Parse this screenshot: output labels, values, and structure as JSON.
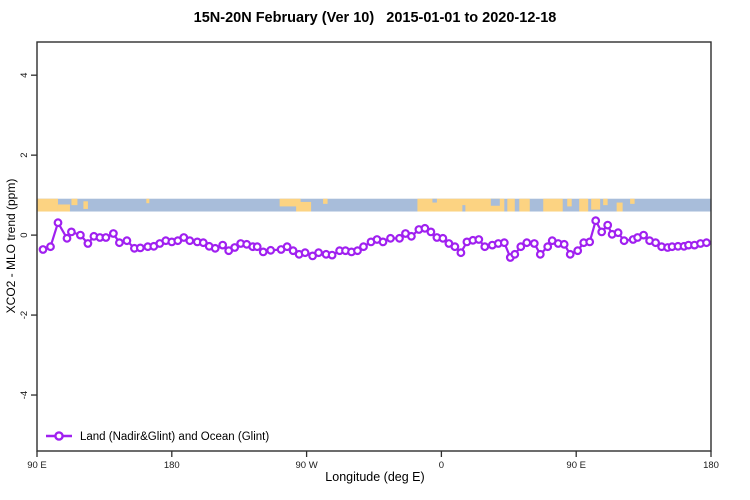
{
  "chart": {
    "title": "15N-20N February (Ver 10)   2015-01-01 to 2020-12-18",
    "xlabel": "Longitude (deg E)",
    "ylabel": "XCO2 - MLO trend (ppm)",
    "legend_label": "Land (Nadir&Glint) and Ocean (Glint)"
  },
  "chart_data": {
    "type": "line",
    "title": "15N-20N February (Ver 10)   2015-01-01 to 2020-12-18",
    "xlabel": "Longitude (deg E)",
    "ylabel": "XCO2 - MLO trend (ppm)",
    "grid": false,
    "legend_position": "bottom-left",
    "xlim": [
      90,
      540
    ],
    "ylim": [
      -5.4,
      4.83
    ],
    "x_ticks": [
      {
        "lon": 90,
        "label": "90 E"
      },
      {
        "lon": 180,
        "label": "180"
      },
      {
        "lon": 270,
        "label": "90 W"
      },
      {
        "lon": 360,
        "label": "0"
      },
      {
        "lon": 450,
        "label": "90 E"
      },
      {
        "lon": 540,
        "label": "180"
      }
    ],
    "y_ticks": [
      -4,
      -2,
      0,
      2,
      4
    ],
    "series": [
      {
        "name": "Land (Nadir&Glint) and Ocean (Glint)",
        "color": "#A020F0",
        "marker": "open-circle",
        "points": [
          [
            94,
            -0.36
          ],
          [
            99,
            -0.29
          ],
          [
            104,
            0.31
          ],
          [
            110,
            -0.08
          ],
          [
            113,
            0.08
          ],
          [
            119,
            0.0
          ],
          [
            124,
            -0.21
          ],
          [
            128,
            -0.03
          ],
          [
            132,
            -0.06
          ],
          [
            136,
            -0.06
          ],
          [
            141,
            0.04
          ],
          [
            145,
            -0.19
          ],
          [
            150,
            -0.14
          ],
          [
            155,
            -0.33
          ],
          [
            159,
            -0.32
          ],
          [
            164,
            -0.29
          ],
          [
            168,
            -0.28
          ],
          [
            172,
            -0.21
          ],
          [
            176,
            -0.14
          ],
          [
            180,
            -0.17
          ],
          [
            184,
            -0.14
          ],
          [
            188,
            -0.06
          ],
          [
            192,
            -0.14
          ],
          [
            197,
            -0.17
          ],
          [
            201,
            -0.19
          ],
          [
            205,
            -0.28
          ],
          [
            209,
            -0.33
          ],
          [
            214,
            -0.25
          ],
          [
            218,
            -0.39
          ],
          [
            222,
            -0.31
          ],
          [
            226,
            -0.21
          ],
          [
            230,
            -0.23
          ],
          [
            234,
            -0.29
          ],
          [
            237,
            -0.29
          ],
          [
            241,
            -0.42
          ],
          [
            246,
            -0.38
          ],
          [
            253,
            -0.36
          ],
          [
            257,
            -0.29
          ],
          [
            261,
            -0.39
          ],
          [
            265,
            -0.48
          ],
          [
            269,
            -0.44
          ],
          [
            274,
            -0.52
          ],
          [
            278,
            -0.44
          ],
          [
            283,
            -0.48
          ],
          [
            287,
            -0.5
          ],
          [
            292,
            -0.39
          ],
          [
            296,
            -0.39
          ],
          [
            300,
            -0.42
          ],
          [
            304,
            -0.39
          ],
          [
            308,
            -0.29
          ],
          [
            313,
            -0.17
          ],
          [
            317,
            -0.11
          ],
          [
            321,
            -0.17
          ],
          [
            326,
            -0.08
          ],
          [
            332,
            -0.08
          ],
          [
            336,
            0.04
          ],
          [
            340,
            -0.03
          ],
          [
            345,
            0.14
          ],
          [
            349,
            0.17
          ],
          [
            353,
            0.08
          ],
          [
            357,
            -0.06
          ],
          [
            361,
            -0.08
          ],
          [
            365,
            -0.21
          ],
          [
            369,
            -0.29
          ],
          [
            373,
            -0.44
          ],
          [
            377,
            -0.17
          ],
          [
            381,
            -0.13
          ],
          [
            385,
            -0.11
          ],
          [
            389,
            -0.29
          ],
          [
            394,
            -0.25
          ],
          [
            398,
            -0.21
          ],
          [
            402,
            -0.19
          ],
          [
            406,
            -0.56
          ],
          [
            409,
            -0.48
          ],
          [
            413,
            -0.29
          ],
          [
            417,
            -0.19
          ],
          [
            422,
            -0.21
          ],
          [
            426,
            -0.48
          ],
          [
            431,
            -0.29
          ],
          [
            434,
            -0.14
          ],
          [
            438,
            -0.21
          ],
          [
            442,
            -0.23
          ],
          [
            446,
            -0.48
          ],
          [
            451,
            -0.39
          ],
          [
            455,
            -0.19
          ],
          [
            459,
            -0.17
          ],
          [
            463,
            0.36
          ],
          [
            467,
            0.08
          ],
          [
            471,
            0.25
          ],
          [
            474,
            0.02
          ],
          [
            478,
            0.06
          ],
          [
            482,
            -0.14
          ],
          [
            488,
            -0.11
          ],
          [
            491,
            -0.06
          ],
          [
            495,
            0.0
          ],
          [
            499,
            -0.14
          ],
          [
            503,
            -0.19
          ],
          [
            507,
            -0.29
          ],
          [
            511,
            -0.31
          ],
          [
            514,
            -0.29
          ],
          [
            518,
            -0.28
          ],
          [
            522,
            -0.28
          ],
          [
            525,
            -0.25
          ],
          [
            529,
            -0.25
          ],
          [
            533,
            -0.21
          ],
          [
            537,
            -0.19
          ]
        ]
      }
    ],
    "map_band": {
      "description": "land-ocean map strip",
      "value_top": 0.91,
      "value_bottom": 0.59,
      "ocean_color": "#a8bdda",
      "land_color": "#fcd382",
      "land_segments": [
        [
          90,
          104,
          0,
          1
        ],
        [
          104,
          112,
          0.45,
          0.55
        ],
        [
          113,
          117,
          0,
          0.5
        ],
        [
          121,
          124,
          0.2,
          0.6
        ],
        [
          163,
          165,
          0,
          0.35
        ],
        [
          252,
          266,
          0,
          0.6
        ],
        [
          263,
          273,
          0.25,
          0.75
        ],
        [
          281,
          284,
          0,
          0.4
        ],
        [
          344,
          402,
          0,
          1
        ],
        [
          404,
          409,
          0,
          1
        ],
        [
          412,
          419,
          0,
          1
        ],
        [
          428,
          441,
          0,
          1
        ],
        [
          444,
          447,
          0,
          0.6
        ],
        [
          452,
          458,
          0,
          1
        ],
        [
          460,
          466,
          0,
          0.85
        ],
        [
          468,
          471,
          0,
          0.5
        ],
        [
          477,
          481,
          0.3,
          0.7
        ],
        [
          486,
          489,
          0,
          0.4
        ]
      ],
      "ocean_notches": [
        [
          393,
          399,
          0,
          0.55
        ],
        [
          354,
          357,
          0,
          0.3
        ],
        [
          374,
          376,
          0.5,
          0.5
        ]
      ]
    },
    "frame_color": "#2e2e2e"
  }
}
